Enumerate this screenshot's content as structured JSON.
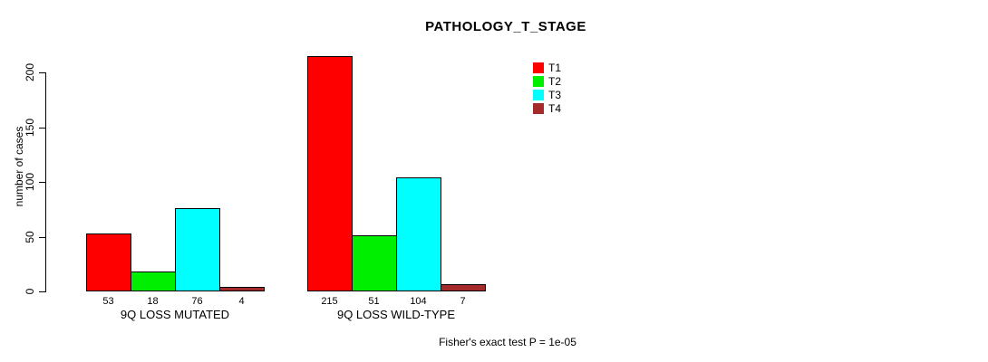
{
  "title": "PATHOLOGY_T_STAGE",
  "annotation": "Fisher's exact test P = 1e-05",
  "chart_data": {
    "type": "bar",
    "title": "PATHOLOGY_T_STAGE",
    "xlabel": "",
    "ylabel": "number of cases",
    "categories": [
      "9Q LOSS MUTATED",
      "9Q LOSS WILD-TYPE"
    ],
    "series": [
      {
        "name": "T1",
        "color": "#ff0000",
        "values": [
          53,
          215
        ]
      },
      {
        "name": "T2",
        "color": "#00ee00",
        "values": [
          18,
          51
        ]
      },
      {
        "name": "T3",
        "color": "#00ffff",
        "values": [
          76,
          104
        ]
      },
      {
        "name": "T4",
        "color": "#a52a2a",
        "values": [
          4,
          7
        ]
      }
    ],
    "yticks": [
      0,
      50,
      100,
      150,
      200
    ],
    "ylim": [
      0,
      220
    ],
    "grid": false,
    "legend_position": "top-right",
    "legend_entries": [
      "T1",
      "T2",
      "T3",
      "T4"
    ],
    "bar_value_labels": [
      [
        "53",
        "18",
        "76",
        "4"
      ],
      [
        "215",
        "51",
        "104",
        "7"
      ]
    ],
    "annotation": "Fisher's exact test P = 1e-05",
    "bar_border_color": "#000000"
  }
}
